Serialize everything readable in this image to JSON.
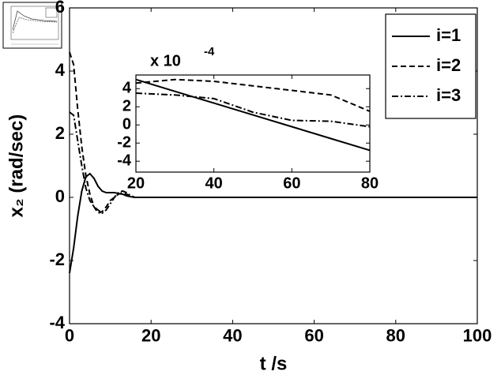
{
  "chart_data": [
    {
      "type": "line",
      "xlabel": "t /s",
      "ylabel": "x₂ (rad/sec)",
      "x": [
        0,
        1,
        2,
        3,
        4,
        5,
        6,
        7,
        8,
        9,
        10,
        11,
        12,
        13,
        14,
        15,
        16,
        17,
        18,
        20,
        40,
        60,
        80,
        100
      ],
      "xlim": [
        0,
        100
      ],
      "xticks": [
        0,
        20,
        40,
        60,
        80,
        100
      ],
      "ylim": [
        -4,
        6
      ],
      "yticks": [
        -4,
        -2,
        0,
        2,
        4,
        6
      ],
      "legend": "upper right",
      "series": [
        {
          "name": "i=1",
          "color": "#000000",
          "style": "solid",
          "values": [
            -2.4,
            -1.6,
            -0.6,
            0.2,
            0.65,
            0.75,
            0.6,
            0.35,
            0.2,
            0.15,
            0.15,
            0.15,
            0.12,
            0.1,
            0.05,
            0.02,
            0,
            0,
            0,
            0,
            0,
            0,
            0,
            0
          ]
        },
        {
          "name": "i=2",
          "color": "#000000",
          "style": "dashed",
          "values": [
            4.6,
            4.2,
            2.8,
            1.6,
            0.7,
            0.1,
            -0.3,
            -0.5,
            -0.45,
            -0.3,
            -0.1,
            0,
            0.1,
            0.15,
            0.1,
            0.05,
            0,
            0,
            0,
            0,
            0,
            0,
            0,
            0
          ]
        },
        {
          "name": "i=3",
          "color": "#000000",
          "style": "dashdot",
          "values": [
            2.7,
            2.6,
            1.8,
            1.0,
            0.3,
            -0.1,
            -0.3,
            -0.4,
            -0.5,
            -0.4,
            -0.2,
            0,
            0.15,
            0.2,
            0.15,
            0.05,
            0,
            0,
            0,
            0,
            0,
            0,
            0,
            0
          ]
        }
      ]
    },
    {
      "type": "line",
      "multiplier": "x 10",
      "exponent": "-4",
      "x": [
        20,
        30,
        40,
        50,
        60,
        70,
        80
      ],
      "xlim": [
        20,
        80
      ],
      "xticks": [
        20,
        40,
        60,
        80
      ],
      "ylim": [
        -5.2,
        5.5
      ],
      "yticks": [
        -4,
        -2,
        0,
        2,
        4
      ],
      "series": [
        {
          "color": "#000000",
          "style": "solid",
          "values": [
            5,
            3.7,
            2.4,
            1.1,
            -0.2,
            -1.5,
            -2.8
          ]
        },
        {
          "color": "#000000",
          "style": "dashed",
          "values": [
            4.6,
            5,
            4.8,
            4.3,
            3.8,
            3.3,
            1.5
          ]
        },
        {
          "color": "#000000",
          "style": "dashdot",
          "values": [
            3.5,
            3.3,
            2.9,
            1.4,
            0.5,
            0.4,
            -0.2
          ]
        }
      ]
    }
  ]
}
